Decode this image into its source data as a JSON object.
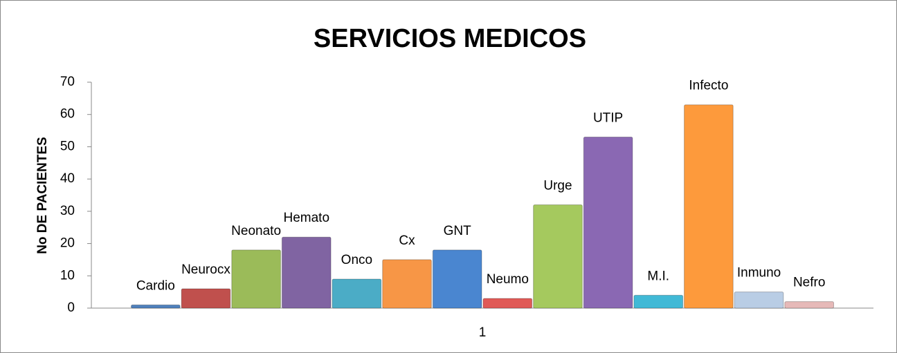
{
  "chart_data": {
    "type": "bar",
    "title": "SERVICIOS MEDICOS",
    "y_axis_label": "No DE PACIENTES",
    "categories": [
      "1"
    ],
    "series": [
      {
        "name": "Cardio",
        "color": "#4f81bd",
        "values": [
          1
        ]
      },
      {
        "name": "Neurocx",
        "color": "#c0504d",
        "values": [
          6
        ]
      },
      {
        "name": "Neonato",
        "color": "#9bbb59",
        "values": [
          18
        ]
      },
      {
        "name": "Hemato",
        "color": "#8064a2",
        "values": [
          22
        ]
      },
      {
        "name": "Onco",
        "color": "#4bacc6",
        "values": [
          9
        ]
      },
      {
        "name": "Cx",
        "color": "#f79646",
        "values": [
          15
        ]
      },
      {
        "name": "GNT",
        "color": "#4a86d0",
        "values": [
          18
        ]
      },
      {
        "name": "Neumo",
        "color": "#e05a57",
        "values": [
          3
        ]
      },
      {
        "name": "Urge",
        "color": "#a5c95e",
        "values": [
          32
        ]
      },
      {
        "name": "UTIP",
        "color": "#8a68b3",
        "values": [
          53
        ]
      },
      {
        "name": "M.I.",
        "color": "#41b9d6",
        "values": [
          4
        ]
      },
      {
        "name": "Infecto",
        "color": "#fd9a3c",
        "values": [
          63
        ]
      },
      {
        "name": "Inmuno",
        "color": "#b9cde5",
        "values": [
          5
        ]
      },
      {
        "name": "Nefro",
        "color": "#e6b9b8",
        "values": [
          2
        ]
      }
    ],
    "ylim": [
      0,
      70
    ],
    "yticks": [
      0,
      10,
      20,
      30,
      40,
      50,
      60,
      70
    ],
    "grid": false
  }
}
